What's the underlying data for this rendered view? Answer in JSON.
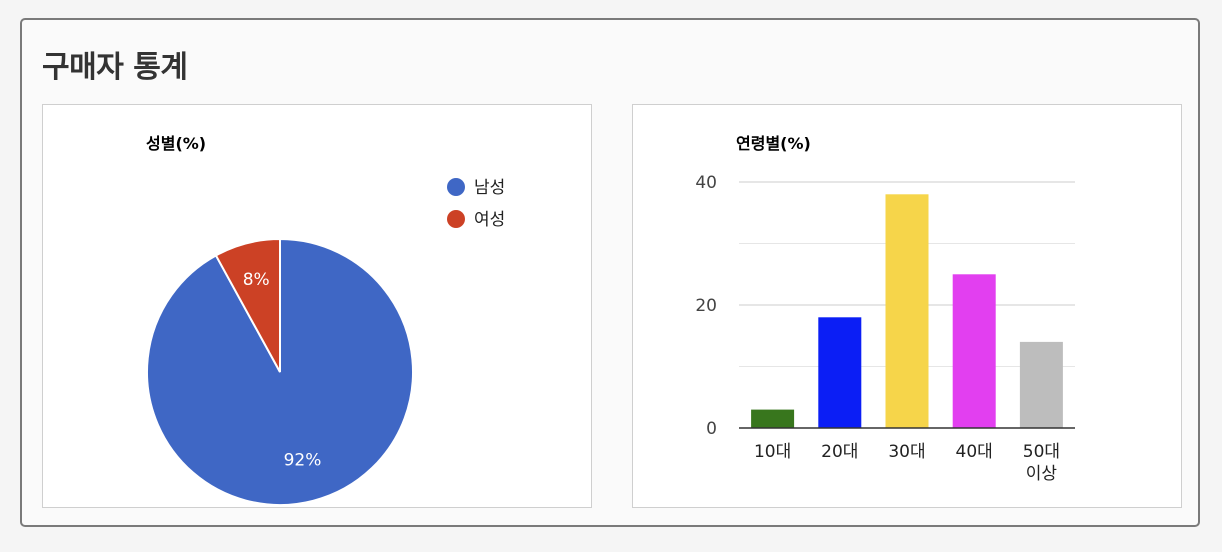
{
  "page": {
    "title": "구매자 통계"
  },
  "chart_data": [
    {
      "type": "pie",
      "title": "성별(%)",
      "legend_position": "top-right",
      "slices": [
        {
          "label": "남성",
          "value": 92,
          "display": "92%",
          "color": "#3f67c5"
        },
        {
          "label": "여성",
          "value": 8,
          "display": "8%",
          "color": "#cc4125"
        }
      ]
    },
    {
      "type": "bar",
      "title": "연령별(%)",
      "categories": [
        "10대",
        "20대",
        "30대",
        "40대",
        "50대 이상"
      ],
      "category_lines": [
        [
          "10대"
        ],
        [
          "20대"
        ],
        [
          "30대"
        ],
        [
          "40대"
        ],
        [
          "50대",
          "이상"
        ]
      ],
      "values": [
        3,
        18,
        38,
        25,
        14
      ],
      "colors": [
        "#38761d",
        "#0b1ef5",
        "#f6d54a",
        "#e23ff0",
        "#bdbdbd"
      ],
      "ylim": [
        0,
        40
      ],
      "yticks": [
        0,
        20,
        40
      ],
      "grid": true
    }
  ]
}
